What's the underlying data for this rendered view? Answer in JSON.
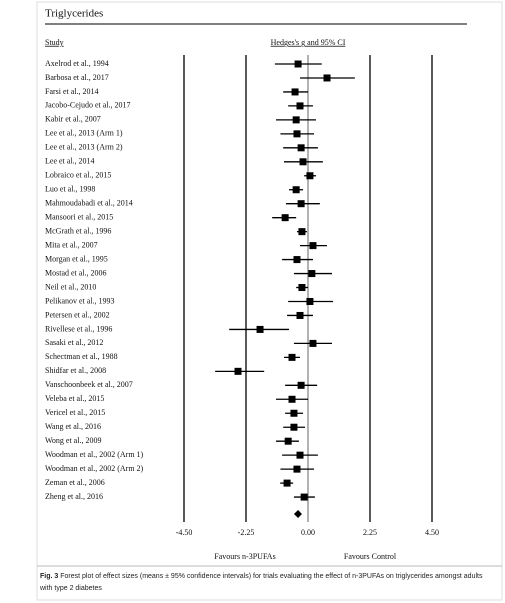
{
  "chart_data": {
    "type": "forest",
    "title": "Triglycerides",
    "study_label": "Study",
    "effect_label": "Hedges's g and 95% CI",
    "categories": [
      "Axelrod et al., 1994",
      "Barbosa et al., 2017",
      "Farsi et al., 2014",
      "Jacobo-Cejudo et al., 2017",
      "Kabir et al., 2007",
      "Lee et al., 2013 (Arm 1)",
      "Lee et al., 2013 (Arm 2)",
      "Lee et al., 2014",
      "Lobraico et al., 2015",
      "Luo et al., 1998",
      "Mahmoudabadi et al., 2014",
      "Mansoori et al., 2015",
      "McGrath et al., 1996",
      "Mita et al., 2007",
      "Morgan et al., 1995",
      "Mostad et al., 2006",
      "Neil et al., 2010",
      "Pelikanov et al., 1993",
      "Petersen et al., 2002",
      "Rivellese et al., 1996",
      "Sasaki et al., 2012",
      "Schectman et al., 1988",
      "Shidfar et al., 2008",
      "Vanschoonbeek et al., 2007",
      "Veleba et al., 2015",
      "Vericel et al., 2015",
      "Wang et al., 2016",
      "Wong et al., 2009",
      "Woodman et al., 2002 (Arm 1)",
      "Woodman et al., 2002 (Arm 2)",
      "Zeman et al., 2006",
      "Zheng et al., 2016"
    ],
    "values": [
      -0.36,
      0.69,
      -0.47,
      -0.29,
      -0.43,
      -0.4,
      -0.25,
      -0.18,
      0.07,
      -0.43,
      -0.25,
      -0.83,
      -0.22,
      0.18,
      -0.4,
      0.14,
      -0.22,
      0.07,
      -0.29,
      -1.74,
      0.18,
      -0.58,
      -2.54,
      -0.25,
      -0.58,
      -0.51,
      -0.51,
      -0.72,
      -0.29,
      -0.4,
      -0.76,
      -0.14
    ],
    "lower": [
      -1.2,
      -0.29,
      -0.9,
      -0.72,
      -1.16,
      -1.0,
      -0.9,
      -0.87,
      -0.14,
      -0.69,
      -0.8,
      -1.3,
      -0.4,
      -0.29,
      -0.94,
      -0.51,
      -0.43,
      -0.72,
      -0.76,
      -2.86,
      -0.51,
      -0.87,
      -3.37,
      -0.83,
      -1.16,
      -0.83,
      -0.9,
      -1.16,
      -0.94,
      -1.0,
      -1.01,
      -0.51
    ],
    "upper": [
      0.5,
      1.7,
      0,
      0.18,
      0.29,
      0.22,
      0.36,
      0.54,
      0.29,
      -0.18,
      0.43,
      -0.43,
      -0.04,
      0.69,
      0.18,
      0.87,
      0,
      0.91,
      0.18,
      -0.69,
      0.87,
      -0.29,
      -1.59,
      0.33,
      0,
      -0.18,
      -0.11,
      -0.33,
      0.36,
      0.22,
      -0.54,
      0.25
    ],
    "summary": {
      "value": -0.36,
      "lower": -0.51,
      "upper": -0.22
    },
    "color": "#000000",
    "xlim": [
      -4.5,
      4.5
    ],
    "xticks": [
      {
        "value": -4.5,
        "label": "-4.50"
      },
      {
        "value": -2.25,
        "label": "-2.25"
      },
      {
        "value": 0,
        "label": "0.00"
      },
      {
        "value": 2.25,
        "label": "2.25"
      },
      {
        "value": 4.5,
        "label": "4.50"
      }
    ],
    "left_label": "Favours n-3PUFAs",
    "right_label": "Favours Control"
  },
  "figure": {
    "label": "Fig. 3",
    "caption": "Forest plot of effect sizes (means ± 95% confidence intervals) for trials evaluating the effect of n-3PUFAs on triglycerides amongst adults with type 2 diabetes"
  }
}
